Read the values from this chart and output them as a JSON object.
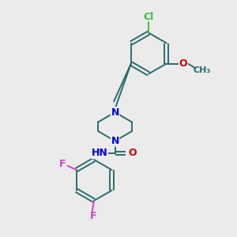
{
  "bg_color": "#ebebeb",
  "bond_color": "#2d6b6b",
  "bond_width": 1.4,
  "atom_colors": {
    "C": "#2d6b6b",
    "N": "#0000cc",
    "O": "#cc0000",
    "F": "#cc44cc",
    "Cl": "#44bb44",
    "H": "#777777"
  },
  "font_size": 8.5
}
